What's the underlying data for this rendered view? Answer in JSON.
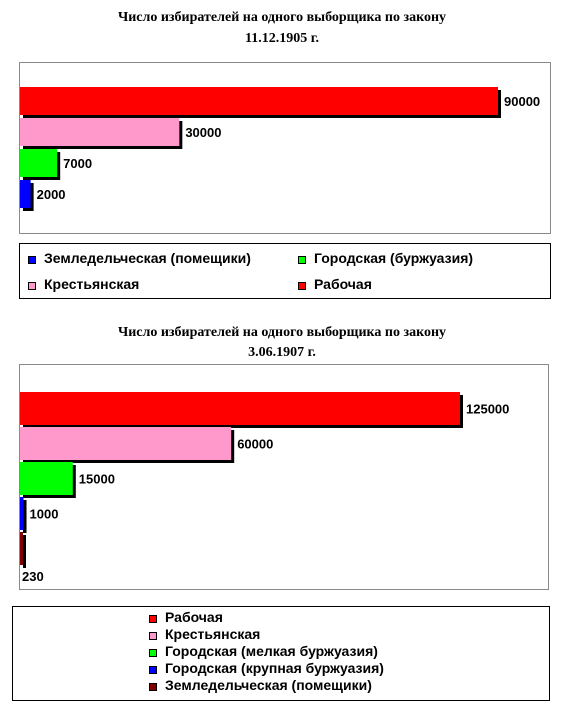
{
  "chart_data": [
    {
      "type": "bar",
      "orientation": "horizontal",
      "title_line1": "Число избирателей на одного выборщика по закону",
      "title_line2": "11.12.1905 г.",
      "categories": [
        "Рабочая",
        "Крестьянская",
        "Городская (буржуазия)",
        "Земледельческая (помещики)"
      ],
      "values": [
        90000,
        30000,
        7000,
        2000
      ],
      "colors": [
        "#ff0000",
        "#ff99cc",
        "#00ff00",
        "#0000ff"
      ],
      "value_labels": [
        "90000",
        "30000",
        "7000",
        "2000"
      ],
      "xlim": [
        0,
        90000
      ],
      "grid": false,
      "legend": [
        {
          "label": "Земледельческая (помещики)",
          "color": "#0000ff"
        },
        {
          "label": "Городская (буржуазия)",
          "color": "#00ff00"
        },
        {
          "label": "Крестьянская",
          "color": "#ff99cc"
        },
        {
          "label": "Рабочая",
          "color": "#ff0000"
        }
      ],
      "legend_position": "bottom"
    },
    {
      "type": "bar",
      "orientation": "horizontal",
      "title_line1": "Число избирателей на одного выборщика по закону",
      "title_line2": "3.06.1907 г.",
      "categories": [
        "Рабочая",
        "Крестьянская",
        "Городская (мелкая буржуазия)",
        "Городская (крупная буржуазия)",
        "Земледельческая (помещики)"
      ],
      "values": [
        125000,
        60000,
        15000,
        1000,
        230
      ],
      "colors": [
        "#ff0000",
        "#ff99cc",
        "#00ff00",
        "#0000ff",
        "#800000"
      ],
      "value_labels": [
        "125000",
        "60000",
        "15000",
        "1000",
        "230"
      ],
      "xlim": [
        0,
        125000
      ],
      "grid": false,
      "legend": [
        {
          "label": "Рабочая",
          "color": "#ff0000"
        },
        {
          "label": "Крестьянская",
          "color": "#ff99cc"
        },
        {
          "label": "Городская (мелкая буржуазия)",
          "color": "#00ff00"
        },
        {
          "label": "Городская (крупная буржуазия)",
          "color": "#0000ff"
        },
        {
          "label": "Земледельческая (помещики)",
          "color": "#800000"
        }
      ],
      "legend_position": "bottom"
    }
  ]
}
